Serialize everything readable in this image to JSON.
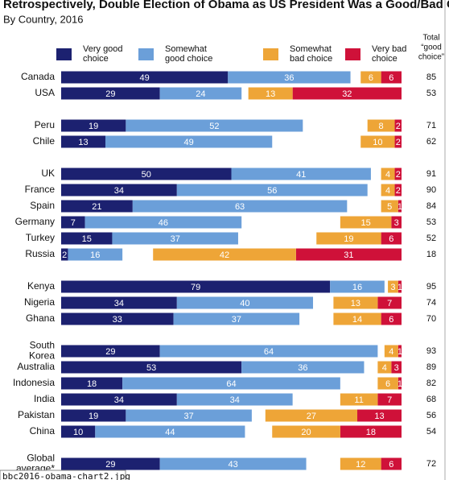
{
  "chart_data": {
    "type": "diverging_bar",
    "title": "Retrospectively, Double Election of Obama as US President Was a Good/Bad Choice",
    "subtitle": "By Country, 2016",
    "categories": [
      "Canada",
      "USA",
      "Peru",
      "Chile",
      "UK",
      "France",
      "Spain",
      "Germany",
      "Turkey",
      "Russia",
      "Kenya",
      "Nigeria",
      "Ghana",
      "South Korea",
      "Australia",
      "Indonesia",
      "India",
      "Pakistan",
      "China",
      "Global average*"
    ],
    "series": [
      {
        "name": "Very good choice",
        "color": "#1c2170",
        "side": "good",
        "values": [
          49,
          29,
          19,
          13,
          50,
          34,
          21,
          7,
          15,
          2,
          79,
          34,
          33,
          29,
          53,
          18,
          34,
          19,
          10,
          29
        ]
      },
      {
        "name": "Somewhat good choice",
        "color": "#6b9fd9",
        "side": "good",
        "values": [
          36,
          24,
          52,
          49,
          41,
          56,
          63,
          46,
          37,
          16,
          16,
          40,
          37,
          64,
          36,
          64,
          34,
          37,
          44,
          43
        ]
      },
      {
        "name": "Somewhat bad choice",
        "color": "#eea537",
        "side": "bad",
        "values": [
          6,
          13,
          8,
          10,
          4,
          4,
          5,
          15,
          19,
          42,
          3,
          13,
          14,
          4,
          4,
          6,
          11,
          27,
          20,
          12
        ]
      },
      {
        "name": "Very bad choice",
        "color": "#cf1139",
        "side": "bad",
        "values": [
          6,
          32,
          2,
          2,
          2,
          2,
          1,
          3,
          6,
          31,
          1,
          7,
          6,
          1,
          3,
          1,
          7,
          13,
          18,
          6
        ]
      }
    ],
    "total_header": [
      "Total",
      "“good",
      "choice”"
    ],
    "totals": [
      85,
      53,
      71,
      62,
      91,
      90,
      84,
      53,
      52,
      18,
      95,
      74,
      70,
      93,
      89,
      82,
      68,
      56,
      54,
      72
    ],
    "footer": "bbc2016-obama-chart2.jpg"
  }
}
